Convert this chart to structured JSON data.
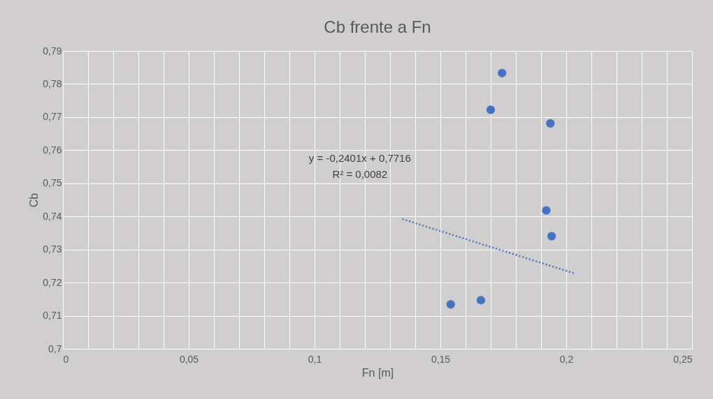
{
  "chart_data": {
    "type": "scatter",
    "title": "Cb frente a Fn",
    "xlabel": "Fn [m]",
    "ylabel": "Cb",
    "series": [
      {
        "color": "#4472c4",
        "marker": "circle",
        "x": [
          0.1541,
          0.1661,
          0.17,
          0.1745,
          0.1937,
          0.1921,
          0.1942
        ],
        "values": [
          0.7134,
          0.7147,
          0.7722,
          0.7833,
          0.7681,
          0.7418,
          0.734
        ]
      },
      {
        "type": "line",
        "color": "#4472c4",
        "line_style": "dotted",
        "x": [
          0.1349,
          0.2032
        ],
        "values": [
          0.7392,
          0.7228
        ]
      }
    ],
    "xlim": [
      0,
      0.25
    ],
    "ylim": [
      0.7,
      0.79
    ],
    "xticks": [
      {
        "value": 0,
        "label": "0"
      },
      {
        "value": 0.01,
        "label": null
      },
      {
        "value": 0.02,
        "label": null
      },
      {
        "value": 0.03,
        "label": null
      },
      {
        "value": 0.04,
        "label": null
      },
      {
        "value": 0.05,
        "label": "0,05"
      },
      {
        "value": 0.06,
        "label": null
      },
      {
        "value": 0.07,
        "label": null
      },
      {
        "value": 0.08,
        "label": null
      },
      {
        "value": 0.09,
        "label": null
      },
      {
        "value": 0.1,
        "label": "0,1"
      },
      {
        "value": 0.11,
        "label": null
      },
      {
        "value": 0.12,
        "label": null
      },
      {
        "value": 0.13,
        "label": null
      },
      {
        "value": 0.14,
        "label": null
      },
      {
        "value": 0.15,
        "label": "0,15"
      },
      {
        "value": 0.16,
        "label": null
      },
      {
        "value": 0.17,
        "label": null
      },
      {
        "value": 0.18,
        "label": null
      },
      {
        "value": 0.19,
        "label": null
      },
      {
        "value": 0.2,
        "label": "0,2"
      },
      {
        "value": 0.21,
        "label": null
      },
      {
        "value": 0.22,
        "label": null
      },
      {
        "value": 0.23,
        "label": null
      },
      {
        "value": 0.24,
        "label": null
      },
      {
        "value": 0.25,
        "label": "0,25"
      }
    ],
    "yticks": [
      {
        "value": 0.7,
        "label": "0,7"
      },
      {
        "value": 0.71,
        "label": "0,71"
      },
      {
        "value": 0.72,
        "label": "0,72"
      },
      {
        "value": 0.73,
        "label": "0,73"
      },
      {
        "value": 0.74,
        "label": "0,74"
      },
      {
        "value": 0.75,
        "label": "0,75"
      },
      {
        "value": 0.76,
        "label": "0,76"
      },
      {
        "value": 0.77,
        "label": "0,77"
      },
      {
        "value": 0.78,
        "label": "0,78"
      },
      {
        "value": 0.79,
        "label": "0,79"
      }
    ],
    "annotations": [
      "y = -0,2401x + 0,7716",
      "R² = 0,0082"
    ],
    "grid": true
  }
}
